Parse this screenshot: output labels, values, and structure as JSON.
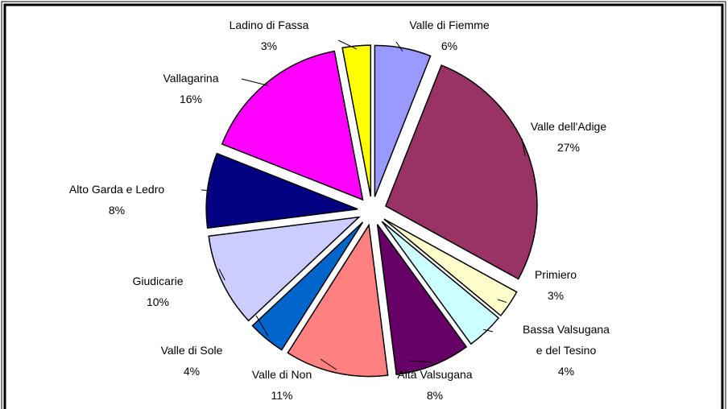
{
  "chart_data": {
    "type": "pie",
    "labels": [
      "Valle di Fiemme",
      "Valle dell'Adige",
      "Primiero",
      "Bassa Valsugana\ne del Tesino",
      "Alta Valsugana",
      "Valle di Non",
      "Valle di Sole",
      "Giudicarie",
      "Alto Garda e Ledro",
      "Vallagarina",
      "Ladino di Fassa"
    ],
    "values": [
      6,
      27,
      3,
      4,
      8,
      11,
      4,
      10,
      8,
      16,
      3
    ],
    "value_labels": [
      "6%",
      "27%",
      "3%",
      "4%",
      "8%",
      "11%",
      "4%",
      "10%",
      "8%",
      "16%",
      "3%"
    ],
    "colors": [
      "#9999ff",
      "#993366",
      "#ffffcc",
      "#ccffff",
      "#660066",
      "#ff8080",
      "#0066cc",
      "#ccccff",
      "#000080",
      "#ff00ff",
      "#ffff00"
    ]
  }
}
